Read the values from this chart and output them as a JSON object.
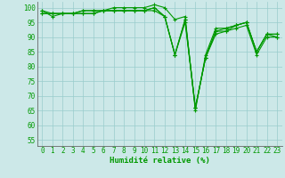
{
  "xlabel": "Humidité relative (%)",
  "background_color": "#cce8e8",
  "grid_color": "#99cccc",
  "line_color": "#009900",
  "marker": "+",
  "xlim": [
    -0.5,
    23.5
  ],
  "ylim": [
    53,
    102
  ],
  "yticks": [
    55,
    60,
    65,
    70,
    75,
    80,
    85,
    90,
    95,
    100
  ],
  "xticks": [
    0,
    1,
    2,
    3,
    4,
    5,
    6,
    7,
    8,
    9,
    10,
    11,
    12,
    13,
    14,
    15,
    16,
    17,
    18,
    19,
    20,
    21,
    22,
    23
  ],
  "series": [
    [
      99,
      98,
      98,
      98,
      99,
      99,
      99,
      100,
      100,
      100,
      100,
      101,
      100,
      96,
      97,
      65,
      84,
      93,
      93,
      94,
      95,
      85,
      91,
      91
    ],
    [
      99,
      97,
      98,
      98,
      99,
      99,
      99,
      99,
      99,
      99,
      99,
      100,
      97,
      84,
      96,
      66,
      83,
      92,
      93,
      94,
      95,
      85,
      91,
      91
    ],
    [
      98,
      98,
      98,
      98,
      98,
      98,
      99,
      99,
      99,
      99,
      99,
      100,
      97,
      84,
      96,
      66,
      83,
      92,
      92,
      94,
      95,
      85,
      91,
      90
    ],
    [
      98,
      98,
      98,
      98,
      98,
      98,
      99,
      99,
      99,
      99,
      99,
      99,
      97,
      84,
      95,
      66,
      83,
      91,
      92,
      93,
      94,
      84,
      90,
      90
    ]
  ]
}
